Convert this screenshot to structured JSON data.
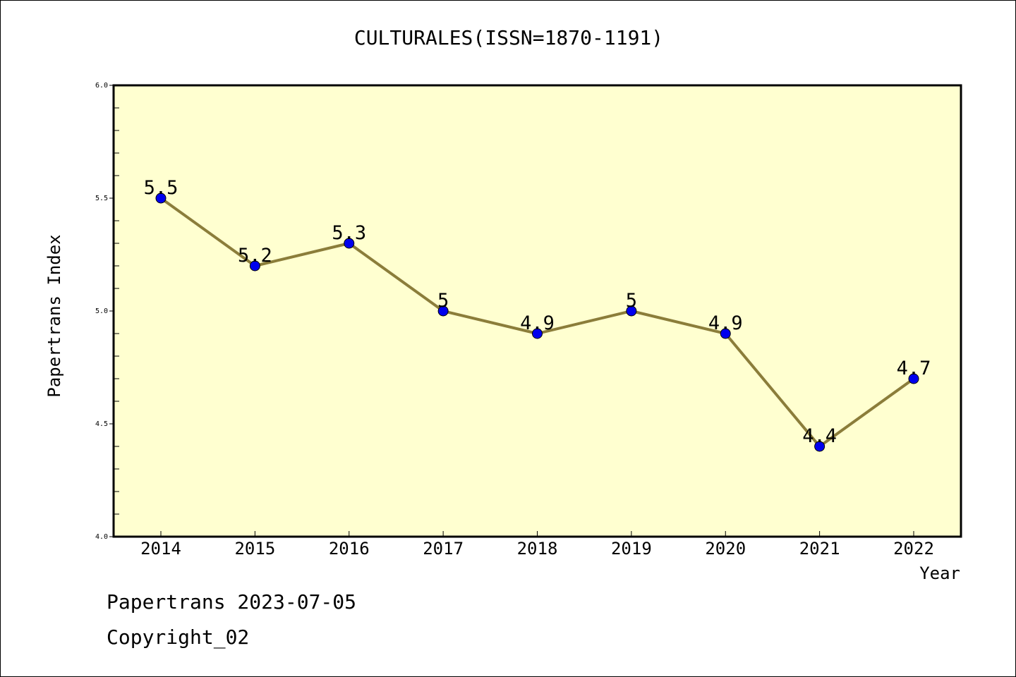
{
  "chart_data": {
    "type": "line",
    "title": "CULTURALES(ISSN=1870-1191)",
    "xlabel": "Year",
    "ylabel": "Papertrans Index",
    "categories": [
      "2014",
      "2015",
      "2016",
      "2017",
      "2018",
      "2019",
      "2020",
      "2021",
      "2022"
    ],
    "series": [
      {
        "values": [
          5.5,
          5.2,
          5.3,
          5.0,
          4.9,
          5.0,
          4.9,
          4.4,
          4.7
        ],
        "data_labels": [
          "5.5",
          "5.2",
          "5.3",
          "5",
          "4.9",
          "5",
          "4.9",
          "4.4",
          "4.7"
        ]
      }
    ],
    "ylim": [
      4.0,
      6.0
    ],
    "yticks": [
      "4.0",
      "4.5",
      "5.0",
      "5.5",
      "6.0"
    ],
    "grid": false,
    "colors": {
      "line": "#8b7d3a",
      "marker": "#0000ee",
      "plot_background": "#ffffd0"
    }
  },
  "footer": {
    "date_text": "Papertrans 2023-07-05",
    "copyright_text": "Copyright_02"
  }
}
